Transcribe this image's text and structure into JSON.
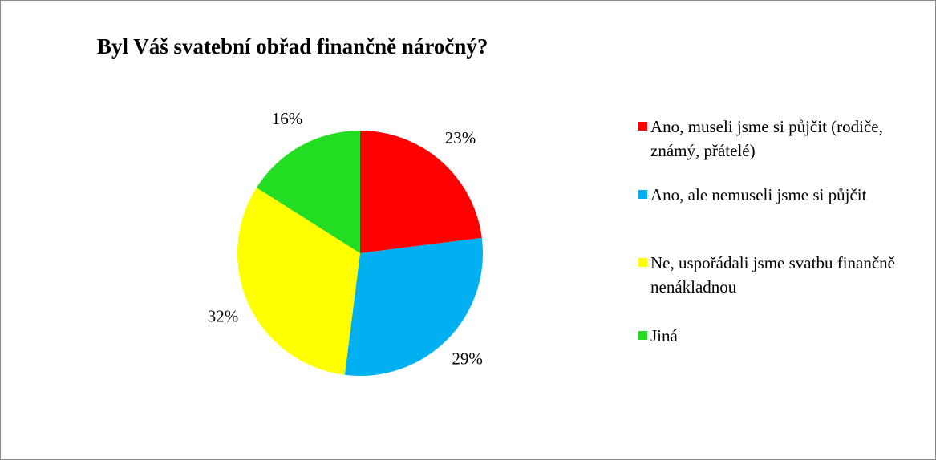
{
  "chart_data": {
    "type": "pie",
    "title": "Byl Váš svatební obřad finančně náročný?",
    "categories": [
      "Ano, museli jsme si půjčit (rodiče, známý, přátelé)",
      "Ano, ale nemuseli jsme si půjčit",
      "Ne, uspořádali jsme svatbu finančně nenákladnou",
      "Jiná"
    ],
    "values": [
      23,
      29,
      32,
      16
    ],
    "value_labels": [
      "23%",
      "29%",
      "32%",
      "16%"
    ],
    "colors": [
      "#ff0000",
      "#00b0f0",
      "#ffff00",
      "#22dd22"
    ],
    "legend": "right"
  }
}
